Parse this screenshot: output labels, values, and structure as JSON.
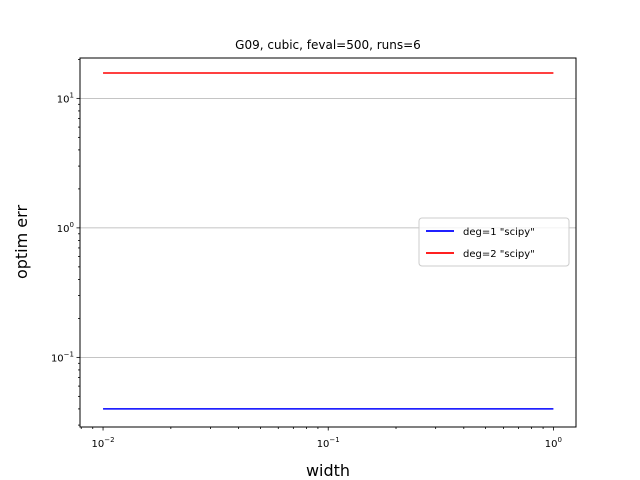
{
  "chart_data": {
    "type": "line",
    "title": "G09, cubic, feval=500, runs=6",
    "xlabel": "width",
    "ylabel": "optim err",
    "xscale": "log",
    "yscale": "log",
    "xlim": [
      0.0079,
      1.26
    ],
    "ylim": [
      0.029,
      20.5
    ],
    "x_ticks": [
      {
        "value": 0.01,
        "label": "10^-2"
      },
      {
        "value": 0.1,
        "label": "10^-1"
      },
      {
        "value": 1,
        "label": "10^0"
      }
    ],
    "y_ticks": [
      {
        "value": 0.1,
        "label": "10^-1"
      },
      {
        "value": 1,
        "label": "10^0"
      },
      {
        "value": 10,
        "label": "10^1"
      }
    ],
    "grid": "y-major",
    "legend_position": "center-right",
    "series": [
      {
        "name": "deg=1 \"scipy\"",
        "color": "#0000ff",
        "x": [
          0.01,
          1
        ],
        "y": [
          0.04,
          0.04
        ]
      },
      {
        "name": "deg=2 \"scipy\"",
        "color": "#ff0000",
        "x": [
          0.01,
          1
        ],
        "y": [
          15.7,
          15.7
        ]
      }
    ]
  }
}
